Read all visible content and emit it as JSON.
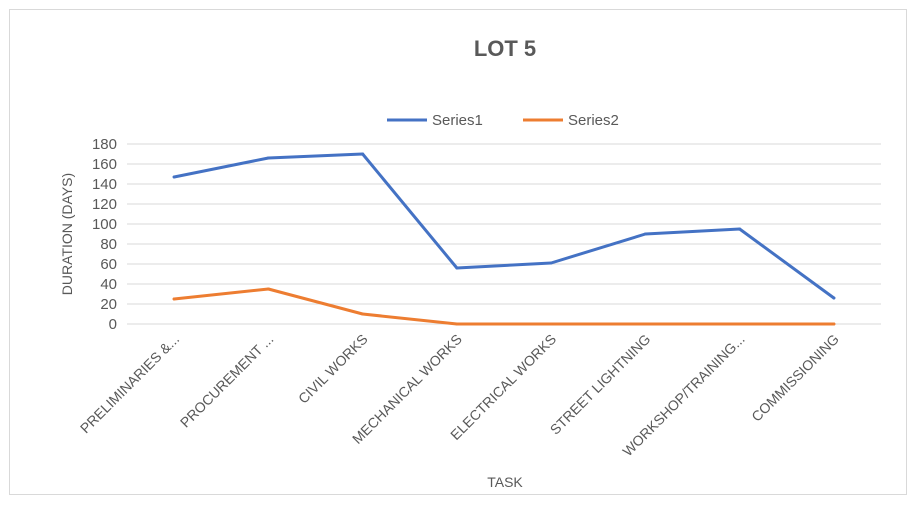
{
  "chart_data": {
    "type": "line",
    "title": "LOT 5",
    "xlabel": "TASK",
    "ylabel": "DURATION (DAYS)",
    "ylim": [
      0,
      180
    ],
    "yticks": [
      0,
      20,
      40,
      60,
      80,
      100,
      120,
      140,
      160,
      180
    ],
    "grid": true,
    "legend_position": "top",
    "categories": [
      "PRELIMINARIES &...",
      "PROCUREMENT ...",
      "CIVIL WORKS",
      "MECHANICAL WORKS",
      "ELECTRICAL WORKS",
      "STREET LIGHTNING",
      "WORKSHOP/TRAINING...",
      "COMMISSIONING"
    ],
    "series": [
      {
        "name": "Series1",
        "color": "#4472c4",
        "values": [
          147,
          166,
          170,
          56,
          61,
          90,
          95,
          26
        ]
      },
      {
        "name": "Series2",
        "color": "#ed7d31",
        "values": [
          25,
          35,
          10,
          0,
          0,
          0,
          0,
          0
        ]
      }
    ]
  }
}
